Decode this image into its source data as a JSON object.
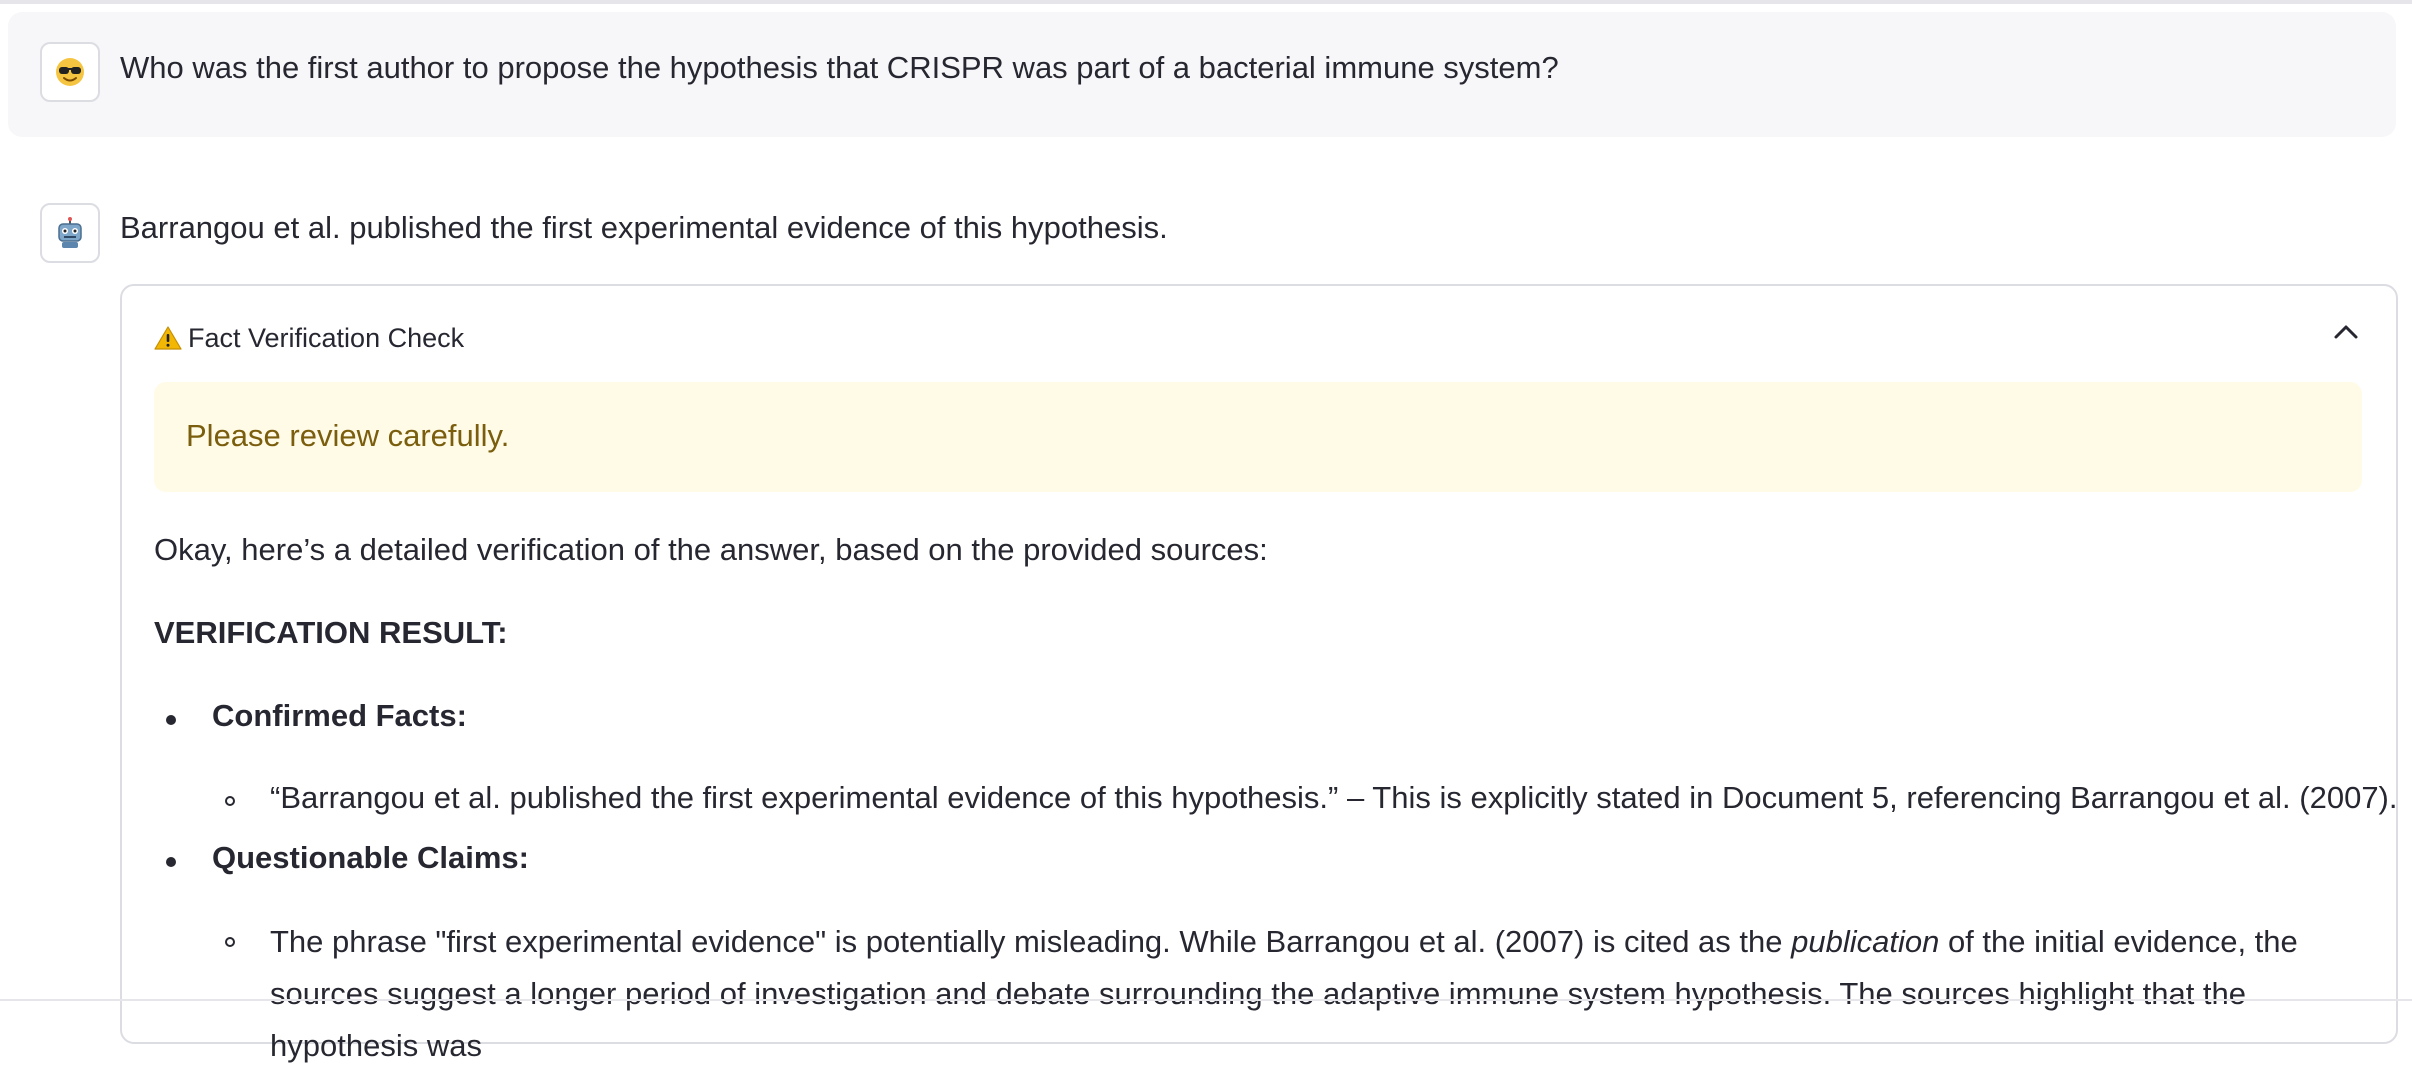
{
  "user_message": {
    "avatar_icon": "sunglasses-face-icon",
    "text": "Who was the first author to propose the hypothesis that CRISPR was part of a bacterial immune system?"
  },
  "assistant_message": {
    "avatar_icon": "robot-icon",
    "text": "Barrangou et al. published the first experimental evidence of this hypothesis."
  },
  "fact_check": {
    "icon": "warning-icon",
    "title": "Fact Verification Check",
    "expanded": true,
    "alert": "Please review carefully.",
    "intro": "Okay, here’s a detailed verification of the answer, based on the provided sources:",
    "result_heading": "VERIFICATION RESULT:",
    "sections": [
      {
        "label": "Confirmed Facts:",
        "items": [
          "“Barrangou et al. published the first experimental evidence of this hypothesis.” – This is explicitly stated in Document 5, referencing Barrangou et al. (2007)."
        ]
      },
      {
        "label": "Questionable Claims:",
        "items": [
          {
            "before": "The phrase \"first experimental evidence\" is potentially misleading. While Barrangou et al. (2007) is cited as the ",
            "emphasis": "publication",
            "after": " of the initial evidence, the sources suggest a longer period of investigation and debate surrounding the adaptive immune system hypothesis. The sources highlight that the hypothesis was"
          }
        ]
      }
    ]
  },
  "colors": {
    "user_bg": "#f7f7f9",
    "alert_bg": "#fffbe6",
    "alert_text": "#7a5e0e",
    "text": "#262730",
    "border": "#dcdde3"
  }
}
